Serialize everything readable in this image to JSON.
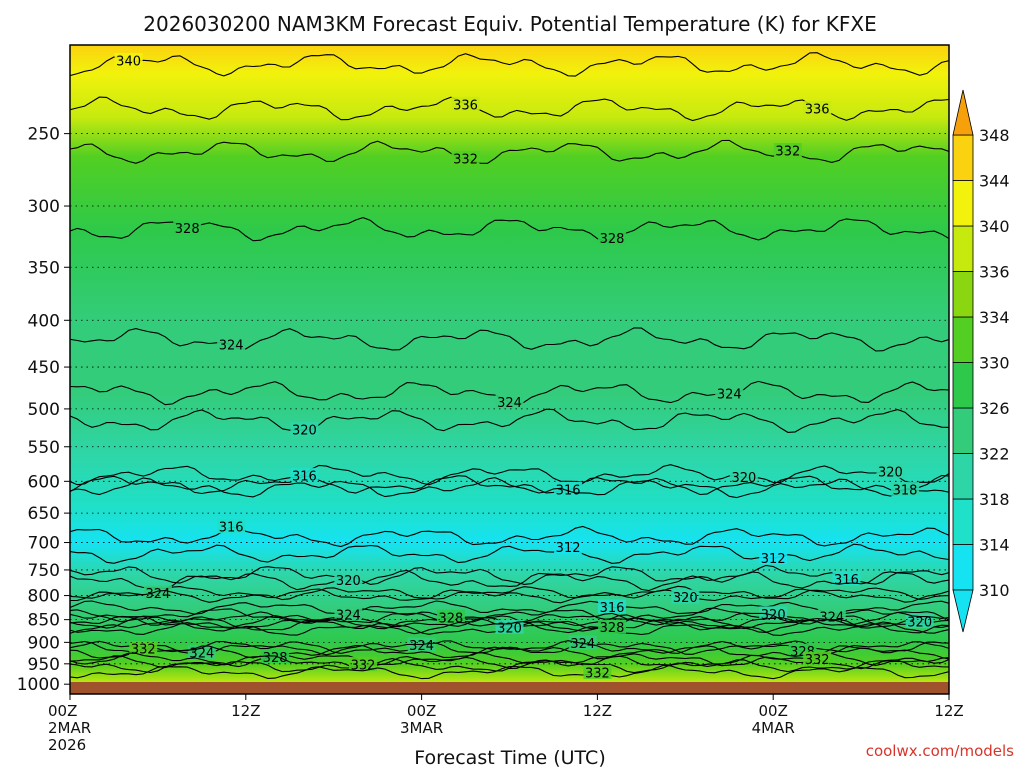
{
  "chart_data": {
    "type": "heatmap",
    "title": "2026030200 NAM3KM Forecast Equiv. Potential Temperature (K) for KFXE",
    "xlabel": "Forecast Time (UTC)",
    "ylabel": "",
    "credit": "coolwx.com/models",
    "x_ticks": [
      {
        "hour": 0,
        "lines": [
          "00Z",
          "2MAR",
          "2026"
        ]
      },
      {
        "hour": 12,
        "lines": [
          "12Z"
        ]
      },
      {
        "hour": 24,
        "lines": [
          "00Z",
          "3MAR"
        ]
      },
      {
        "hour": 36,
        "lines": [
          "12Z"
        ]
      },
      {
        "hour": 48,
        "lines": [
          "00Z",
          "4MAR"
        ]
      },
      {
        "hour": 60,
        "lines": [
          "12Z"
        ]
      }
    ],
    "xlim": [
      0,
      60
    ],
    "y_ticks": [
      250,
      300,
      350,
      400,
      450,
      500,
      550,
      600,
      650,
      700,
      750,
      800,
      850,
      900,
      950,
      1000
    ],
    "ylim_hpa": [
      200,
      1025
    ],
    "y_scale": "log",
    "colorbar": {
      "ticks": [
        310,
        314,
        318,
        322,
        326,
        330,
        334,
        336,
        340,
        344,
        348
      ],
      "colors": [
        "#15e3f2",
        "#1fe0c8",
        "#2ed6a7",
        "#33cc7a",
        "#2ec94a",
        "#52cf22",
        "#8ad611",
        "#c6ea0e",
        "#f2f20c",
        "#fbd20f",
        "#f6a00c"
      ]
    },
    "theta_e_profile": [
      {
        "p": 200,
        "k": 344
      },
      {
        "p": 215,
        "k": 340
      },
      {
        "p": 240,
        "k": 336
      },
      {
        "p": 265,
        "k": 332
      },
      {
        "p": 320,
        "k": 328
      },
      {
        "p": 400,
        "k": 325
      },
      {
        "p": 480,
        "k": 322
      },
      {
        "p": 560,
        "k": 318
      },
      {
        "p": 640,
        "k": 314
      },
      {
        "p": 700,
        "k": 313
      },
      {
        "p": 760,
        "k": 318
      },
      {
        "p": 830,
        "k": 322
      },
      {
        "p": 900,
        "k": 326
      },
      {
        "p": 950,
        "k": 331
      },
      {
        "p": 1000,
        "k": 337
      }
    ],
    "contour_levels": [
      {
        "k": 340,
        "p": 210,
        "label_hours": [
          4
        ]
      },
      {
        "k": 336,
        "p": 235,
        "label_hours": [
          27,
          51
        ]
      },
      {
        "k": 332,
        "p": 262,
        "label_hours": [
          27,
          49
        ]
      },
      {
        "k": 328,
        "p": 318,
        "label_hours": [
          8,
          37
        ]
      },
      {
        "k": 324,
        "p": 420,
        "label_hours": [
          11
        ]
      },
      {
        "k": 324,
        "p": 480,
        "label_hours": [
          30,
          45
        ]
      },
      {
        "k": 320,
        "p": 515,
        "label_hours": [
          16
        ]
      },
      {
        "k": 320,
        "p": 590,
        "label_hours": [
          46,
          56
        ]
      },
      {
        "k": 316,
        "p": 605,
        "label_hours": [
          16,
          34
        ]
      },
      {
        "k": 316,
        "p": 690,
        "label_hours": [
          11
        ]
      },
      {
        "k": 312,
        "p": 720,
        "label_hours": [
          34,
          48
        ]
      },
      {
        "k": 318,
        "p": 610,
        "label_hours": [
          57
        ]
      },
      {
        "k": 316,
        "p": 760,
        "label_hours": [
          53
        ]
      },
      {
        "k": 320,
        "p": 770,
        "label_hours": [
          19
        ]
      },
      {
        "k": 324,
        "p": 795,
        "label_hours": [
          6
        ]
      },
      {
        "k": 320,
        "p": 800,
        "label_hours": [
          42
        ]
      },
      {
        "k": 316,
        "p": 825,
        "label_hours": [
          37
        ]
      },
      {
        "k": 320,
        "p": 840,
        "label_hours": [
          48
        ]
      },
      {
        "k": 324,
        "p": 855,
        "label_hours": [
          19,
          52
        ]
      },
      {
        "k": 320,
        "p": 855,
        "label_hours": [
          58
        ]
      },
      {
        "k": 328,
        "p": 848,
        "label_hours": [
          26
        ]
      },
      {
        "k": 320,
        "p": 870,
        "label_hours": [
          30
        ]
      },
      {
        "k": 328,
        "p": 865,
        "label_hours": [
          37
        ]
      },
      {
        "k": 324,
        "p": 912,
        "label_hours": [
          9,
          24,
          35
        ]
      },
      {
        "k": 328,
        "p": 912,
        "label_hours": [
          50
        ]
      },
      {
        "k": 332,
        "p": 922,
        "label_hours": [
          5
        ]
      },
      {
        "k": 328,
        "p": 940,
        "label_hours": [
          14
        ]
      },
      {
        "k": 332,
        "p": 945,
        "label_hours": [
          51
        ]
      },
      {
        "k": 332,
        "p": 955,
        "label_hours": [
          20
        ]
      },
      {
        "k": 332,
        "p": 970,
        "label_hours": [
          36
        ]
      }
    ]
  }
}
